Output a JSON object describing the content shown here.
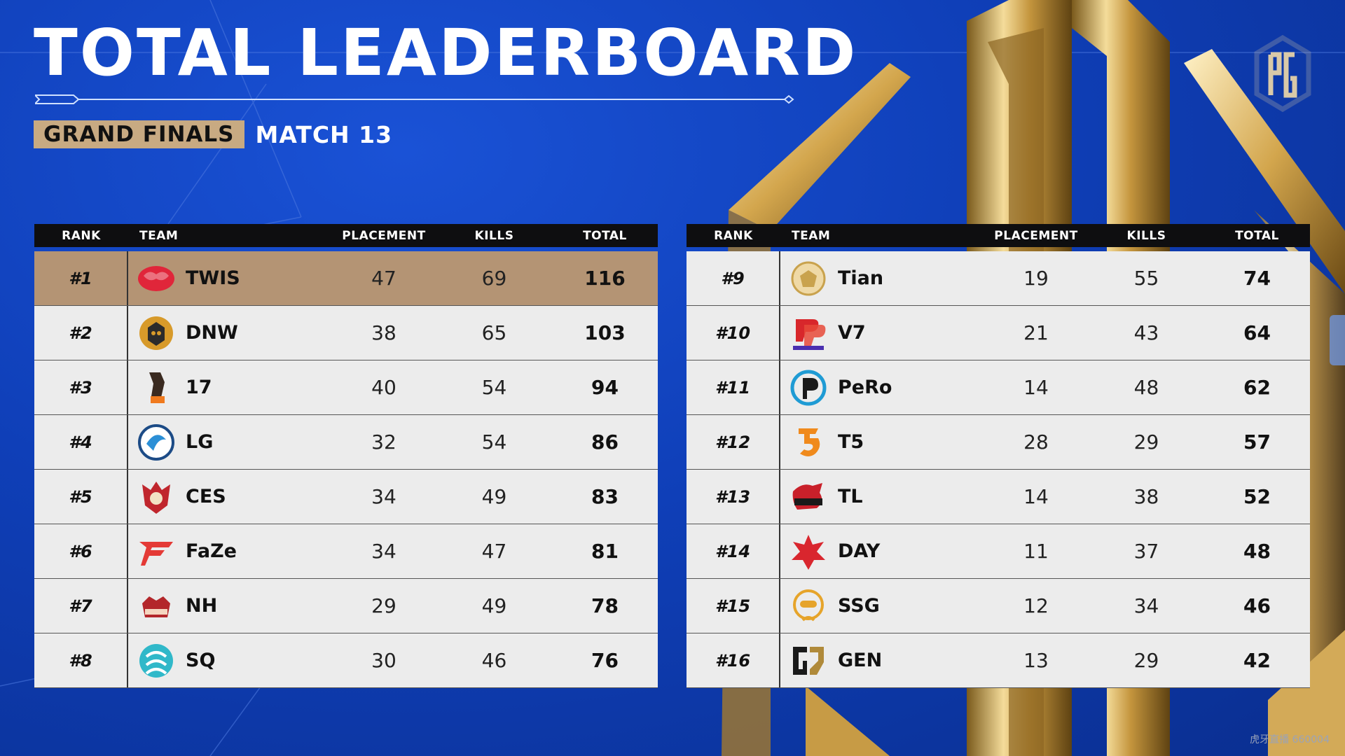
{
  "header": {
    "title": "TOTAL LEADERBOARD",
    "stage": "GRAND FINALS",
    "match": "MATCH 13"
  },
  "columns": {
    "rank": "RANK",
    "team": "TEAM",
    "placement": "PLACEMENT",
    "kills": "KILLS",
    "total": "TOTAL"
  },
  "colors": {
    "highlight_row": "#b49474",
    "row_bg": "#ececec",
    "header_bg": "#0e0e10",
    "badge": "#c8aa82",
    "background": "#0f3fb8"
  },
  "left_table": [
    {
      "rank": "#1",
      "team": "TWIS",
      "placement": "47",
      "kills": "69",
      "total": "116",
      "icon": "twis-logo-icon"
    },
    {
      "rank": "#2",
      "team": "DNW",
      "placement": "38",
      "kills": "65",
      "total": "103",
      "icon": "dnw-logo-icon"
    },
    {
      "rank": "#3",
      "team": "17",
      "placement": "40",
      "kills": "54",
      "total": "94",
      "icon": "17gaming-logo-icon"
    },
    {
      "rank": "#4",
      "team": "LG",
      "placement": "32",
      "kills": "54",
      "total": "86",
      "icon": "lg-logo-icon"
    },
    {
      "rank": "#5",
      "team": "CES",
      "placement": "34",
      "kills": "49",
      "total": "83",
      "icon": "ces-logo-icon"
    },
    {
      "rank": "#6",
      "team": "FaZe",
      "placement": "34",
      "kills": "47",
      "total": "81",
      "icon": "faze-logo-icon"
    },
    {
      "rank": "#7",
      "team": "NH",
      "placement": "29",
      "kills": "49",
      "total": "78",
      "icon": "nh-logo-icon"
    },
    {
      "rank": "#8",
      "team": "SQ",
      "placement": "30",
      "kills": "46",
      "total": "76",
      "icon": "sq-logo-icon"
    }
  ],
  "right_table": [
    {
      "rank": "#9",
      "team": "Tian",
      "placement": "19",
      "kills": "55",
      "total": "74",
      "icon": "tian-logo-icon"
    },
    {
      "rank": "#10",
      "team": "V7",
      "placement": "21",
      "kills": "43",
      "total": "64",
      "icon": "v7-logo-icon"
    },
    {
      "rank": "#11",
      "team": "PeRo",
      "placement": "14",
      "kills": "48",
      "total": "62",
      "icon": "pero-logo-icon"
    },
    {
      "rank": "#12",
      "team": "T5",
      "placement": "28",
      "kills": "29",
      "total": "57",
      "icon": "t5-logo-icon"
    },
    {
      "rank": "#13",
      "team": "TL",
      "placement": "14",
      "kills": "38",
      "total": "52",
      "icon": "tl-logo-icon"
    },
    {
      "rank": "#14",
      "team": "DAY",
      "placement": "11",
      "kills": "37",
      "total": "48",
      "icon": "day-logo-icon"
    },
    {
      "rank": "#15",
      "team": "SSG",
      "placement": "12",
      "kills": "34",
      "total": "46",
      "icon": "ssg-logo-icon"
    },
    {
      "rank": "#16",
      "team": "GEN",
      "placement": "13",
      "kills": "29",
      "total": "42",
      "icon": "gen-logo-icon"
    }
  ],
  "watermark": "虎牙直播 660004"
}
